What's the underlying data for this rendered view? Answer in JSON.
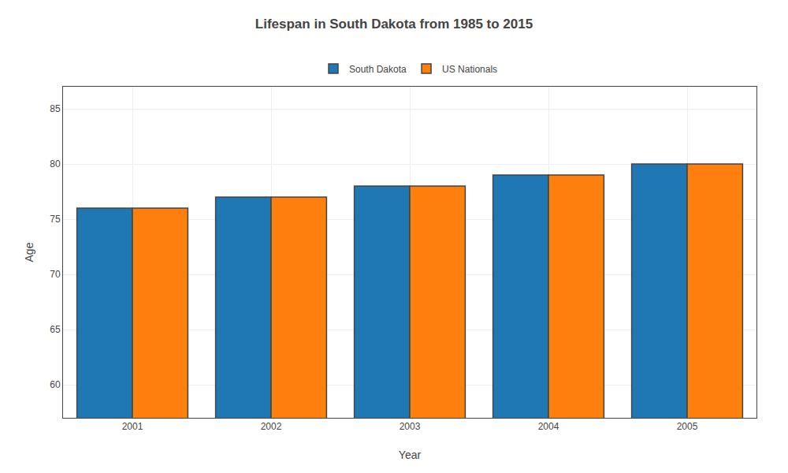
{
  "chart_data": {
    "type": "bar",
    "title": "Lifespan in South Dakota from 1985 to 2015",
    "xlabel": "Year",
    "ylabel": "Age",
    "categories": [
      "2001",
      "2002",
      "2003",
      "2004",
      "2005"
    ],
    "series": [
      {
        "name": "South Dakota",
        "values": [
          76,
          77,
          78,
          79,
          80
        ]
      },
      {
        "name": "US Nationals",
        "values": [
          76,
          77,
          78,
          79,
          80
        ]
      }
    ],
    "ylim": [
      57,
      87
    ],
    "yticks": [
      60,
      65,
      70,
      75,
      80,
      85
    ],
    "grid": true,
    "legend": "top"
  }
}
